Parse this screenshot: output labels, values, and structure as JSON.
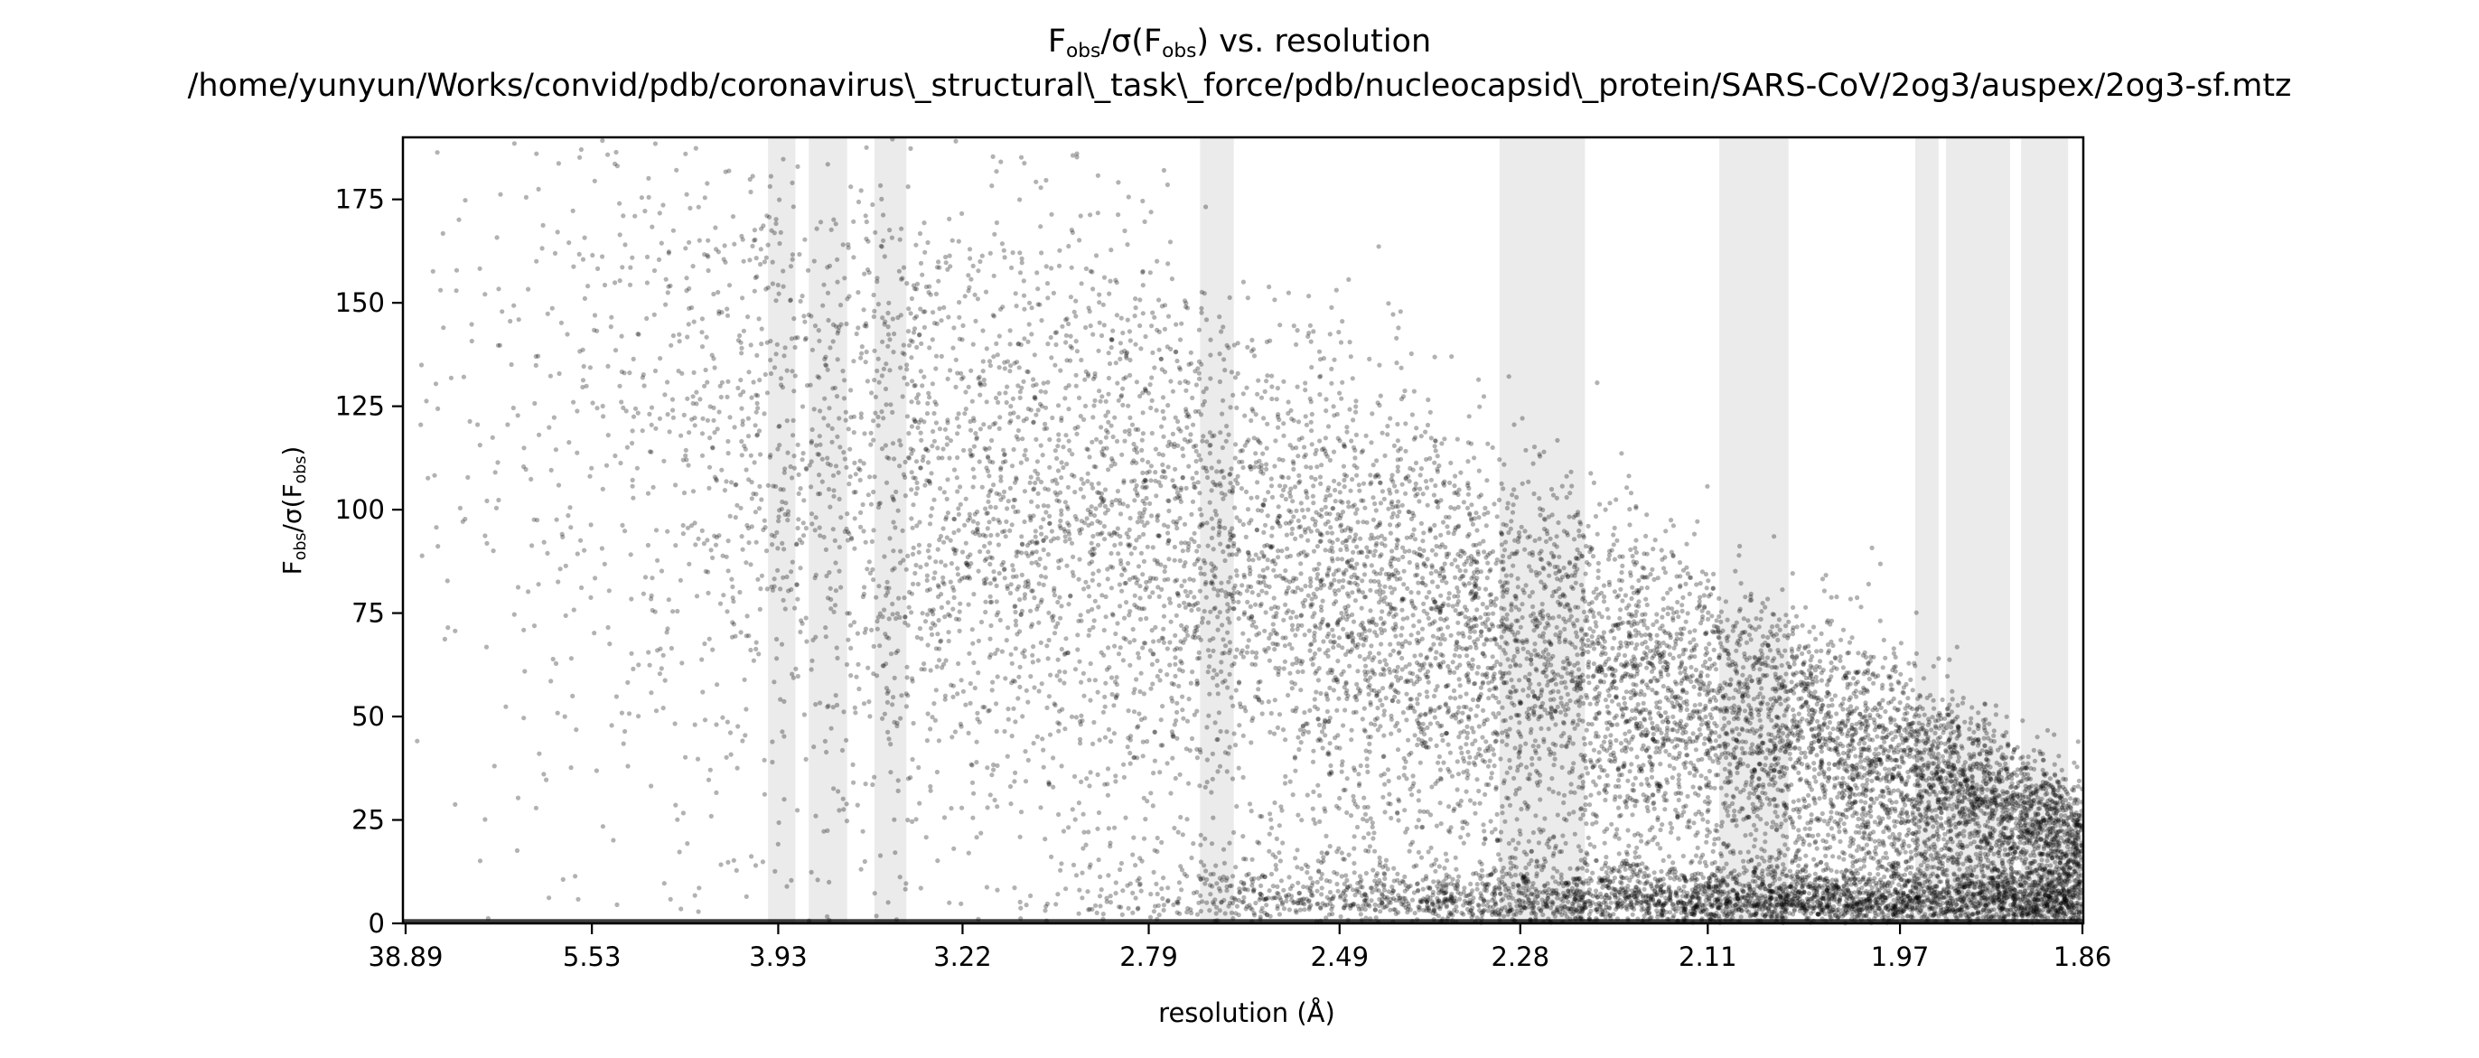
{
  "chart_data": {
    "type": "scatter",
    "title": {
      "line1_parts": [
        "F",
        "obs",
        "/σ(F",
        "obs",
        ") vs. resolution"
      ],
      "line2": "/home/yunyun/Works/convid/pdb/coronavirus\\_structural\\_task\\_force/pdb/nucleocapsid\\_protein/SARS-CoV/2og3/auspex/2og3-sf.mtz"
    },
    "xlabel": "resolution (Å)",
    "ylabel_parts": [
      "F",
      "obs",
      "/σ(F",
      "obs",
      ")"
    ],
    "x_axis": {
      "scale": "inverse-square resolution (1/d²)",
      "ticks": [
        {
          "d": 38.89,
          "label": "38.89"
        },
        {
          "d": 5.53,
          "label": "5.53"
        },
        {
          "d": 3.93,
          "label": "3.93"
        },
        {
          "d": 3.22,
          "label": "3.22"
        },
        {
          "d": 2.79,
          "label": "2.79"
        },
        {
          "d": 2.49,
          "label": "2.49"
        },
        {
          "d": 2.28,
          "label": "2.28"
        },
        {
          "d": 2.11,
          "label": "2.11"
        },
        {
          "d": 1.97,
          "label": "1.97"
        },
        {
          "d": 1.86,
          "label": "1.86"
        }
      ],
      "range_inv_d2": [
        0.0002,
        0.2892
      ]
    },
    "y_axis": {
      "ticks": [
        0,
        25,
        50,
        75,
        100,
        125,
        150,
        175
      ],
      "labels": [
        "0",
        "25",
        "50",
        "75",
        "100",
        "125",
        "150",
        "175"
      ],
      "range": [
        0,
        190
      ]
    },
    "ice_ring_bands_inv_d2": [
      [
        0.063,
        0.0677
      ],
      [
        0.07,
        0.0766
      ],
      [
        0.0813,
        0.0868
      ],
      [
        0.1373,
        0.1431
      ],
      [
        0.1888,
        0.2035
      ],
      [
        0.2266,
        0.2385
      ],
      [
        0.2603,
        0.2643
      ],
      [
        0.2656,
        0.2766
      ],
      [
        0.2785,
        0.2866
      ]
    ],
    "series": [
      {
        "marker_color": "#000000",
        "marker_alpha": 0.3,
        "point_count_estimate": 14000,
        "trend": "Observed reflections with F/σ(F) highest (~100–175) at low resolution (38.89–3.93 Å), decreasing steadily with resolution to mostly below 25 beyond 2.11 Å; dense cluster near 0–15 at high resolution; a horizontal line of points at ~0 across the full range",
        "envelope": [
          {
            "d": 38.89,
            "y_max": 190
          },
          {
            "d": 5.53,
            "y_max": 190
          },
          {
            "d": 3.93,
            "y_max": 188
          },
          {
            "d": 3.22,
            "y_max": 165
          },
          {
            "d": 2.79,
            "y_max": 155
          },
          {
            "d": 2.49,
            "y_max": 130
          },
          {
            "d": 2.28,
            "y_max": 105
          },
          {
            "d": 2.11,
            "y_max": 85
          },
          {
            "d": 1.97,
            "y_max": 60
          },
          {
            "d": 1.86,
            "y_max": 32
          }
        ]
      }
    ],
    "grid": false,
    "legend": "none"
  }
}
